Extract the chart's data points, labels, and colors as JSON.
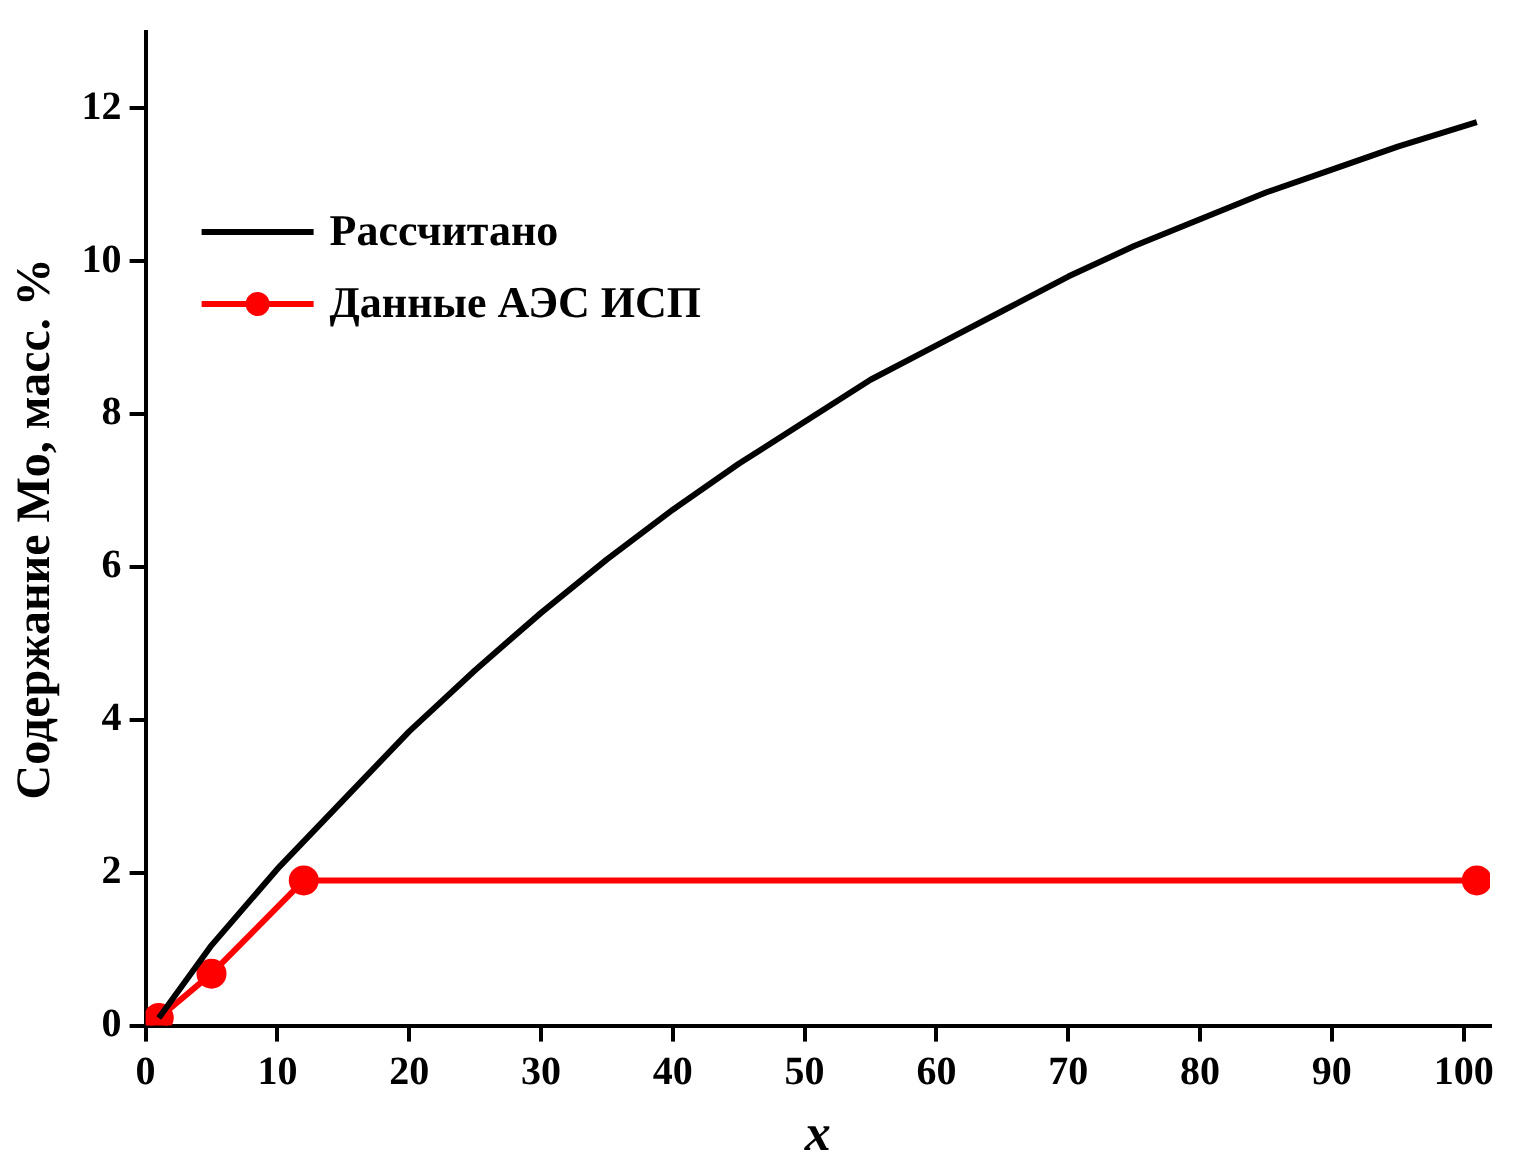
{
  "chart_data": {
    "type": "line",
    "xlabel": "x",
    "ylabel": "Содержание Mo, масс. %",
    "xlim": [
      0,
      102
    ],
    "xticks": [
      0,
      10,
      20,
      30,
      40,
      50,
      60,
      70,
      80,
      90,
      100
    ],
    "ylim": [
      0,
      13
    ],
    "yticks": [
      0,
      2,
      4,
      6,
      8,
      10,
      12
    ],
    "grid": false,
    "legend": "top left",
    "series": [
      {
        "name": "Рассчитано",
        "color": "#000000",
        "marker": "none",
        "x": [
          1,
          5,
          10,
          15,
          20,
          25,
          30,
          35,
          40,
          45,
          50,
          55,
          60,
          65,
          70,
          75,
          80,
          85,
          90,
          95,
          101
        ],
        "values": [
          0.1,
          1.05,
          2.05,
          2.95,
          3.85,
          4.65,
          5.4,
          6.1,
          6.75,
          7.35,
          7.9,
          8.45,
          8.9,
          9.35,
          9.8,
          10.2,
          10.55,
          10.9,
          11.2,
          11.5,
          11.82
        ]
      },
      {
        "name": "Данные АЭС ИСП",
        "color": "#ff0000",
        "marker": "circle",
        "x": [
          1,
          5,
          12,
          101
        ],
        "values": [
          0.1,
          0.68,
          1.9,
          1.9
        ]
      }
    ]
  }
}
